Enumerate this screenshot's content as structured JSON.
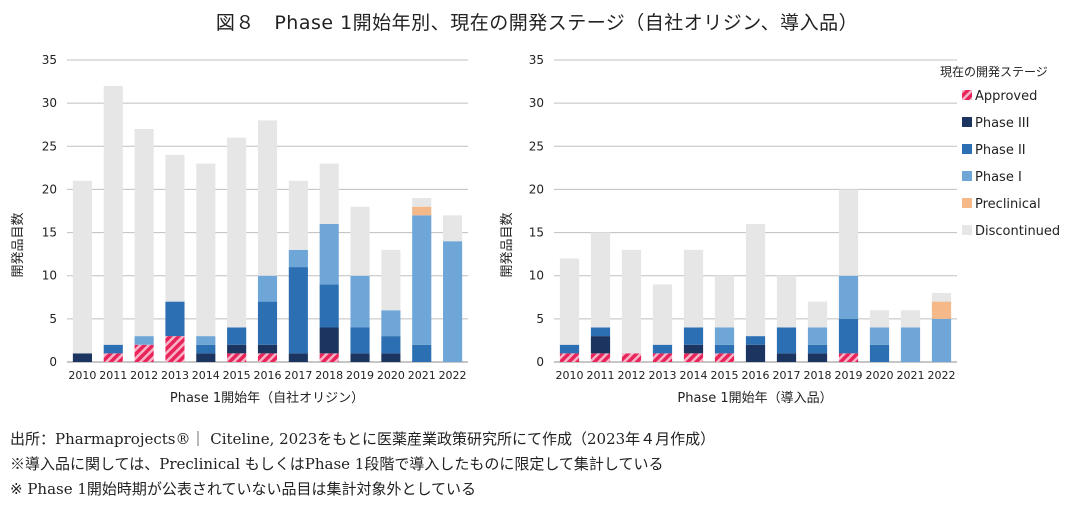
{
  "title": "図８　Phase 1開始年別、現在の開発ステージ（自社オリジン、導入品）",
  "colors": {
    "Approved": "#e8245a",
    "Approved_stripe": "#f7b3c6",
    "Phase III": "#1c3560",
    "Phase II": "#2c6fb3",
    "Phase I": "#6fa6d8",
    "Preclinical": "#f5b889",
    "Discontinued": "#e6e6e6",
    "grid": "#bfbfbf"
  },
  "legend": {
    "title": "現在の開発ステージ",
    "items": [
      "Approved",
      "Phase III",
      "Phase II",
      "Phase I",
      "Preclinical",
      "Discontinued"
    ]
  },
  "chart_data": [
    {
      "type": "bar",
      "stacked": true,
      "title": "",
      "xlabel": "Phase 1開始年（自社オリジン）",
      "ylabel": "開発品目数",
      "ylim": [
        0,
        35
      ],
      "yticks": [
        0,
        5,
        10,
        15,
        20,
        25,
        30,
        35
      ],
      "grid": true,
      "categories": [
        "2010",
        "2011",
        "2012",
        "2013",
        "2014",
        "2015",
        "2016",
        "2017",
        "2018",
        "2019",
        "2020",
        "2021",
        "2022"
      ],
      "series": [
        {
          "name": "Approved",
          "values": [
            0,
            1,
            2,
            3,
            0,
            1,
            1,
            0,
            1,
            0,
            0,
            0,
            0
          ]
        },
        {
          "name": "Phase III",
          "values": [
            1,
            0,
            0,
            0,
            1,
            1,
            1,
            1,
            3,
            1,
            1,
            0,
            0
          ]
        },
        {
          "name": "Phase II",
          "values": [
            0,
            1,
            0,
            4,
            1,
            2,
            5,
            10,
            5,
            3,
            2,
            2,
            0
          ]
        },
        {
          "name": "Phase I",
          "values": [
            0,
            0,
            1,
            0,
            1,
            0,
            3,
            2,
            7,
            6,
            3,
            15,
            14
          ]
        },
        {
          "name": "Preclinical",
          "values": [
            0,
            0,
            0,
            0,
            0,
            0,
            0,
            0,
            0,
            0,
            0,
            1,
            0
          ]
        },
        {
          "name": "Discontinued",
          "values": [
            20,
            30,
            24,
            17,
            20,
            22,
            18,
            8,
            7,
            8,
            7,
            1,
            3
          ]
        }
      ]
    },
    {
      "type": "bar",
      "stacked": true,
      "title": "",
      "xlabel": "Phase 1開始年（導入品）",
      "ylabel": "開発品目数",
      "ylim": [
        0,
        35
      ],
      "yticks": [
        0,
        5,
        10,
        15,
        20,
        25,
        30,
        35
      ],
      "grid": true,
      "legend_position": "right",
      "categories": [
        "2010",
        "2011",
        "2012",
        "2013",
        "2014",
        "2015",
        "2016",
        "2017",
        "2018",
        "2019",
        "2020",
        "2021",
        "2022"
      ],
      "series": [
        {
          "name": "Approved",
          "values": [
            1,
            1,
            1,
            1,
            1,
            1,
            0,
            0,
            0,
            1,
            0,
            0,
            0
          ]
        },
        {
          "name": "Phase III",
          "values": [
            0,
            2,
            0,
            0,
            1,
            0,
            2,
            1,
            1,
            0,
            0,
            0,
            0
          ]
        },
        {
          "name": "Phase II",
          "values": [
            1,
            1,
            0,
            1,
            2,
            1,
            1,
            3,
            1,
            4,
            2,
            0,
            0
          ]
        },
        {
          "name": "Phase I",
          "values": [
            0,
            0,
            0,
            0,
            0,
            2,
            0,
            0,
            2,
            5,
            2,
            4,
            5
          ]
        },
        {
          "name": "Preclinical",
          "values": [
            0,
            0,
            0,
            0,
            0,
            0,
            0,
            0,
            0,
            0,
            0,
            0,
            2
          ]
        },
        {
          "name": "Discontinued",
          "values": [
            10,
            11,
            12,
            7,
            9,
            6,
            13,
            6,
            3,
            10,
            2,
            2,
            1
          ]
        }
      ]
    }
  ],
  "notes": [
    "出所：Pharmaprojects®｜ Citeline, 2023をもとに医薬産業政策研究所にて作成（2023年４月作成）",
    "※導入品に関しては、Preclinical もしくはPhase 1段階で導入したものに限定して集計している",
    "※ Phase 1開始時期が公表されていない品目は集計対象外としている"
  ]
}
